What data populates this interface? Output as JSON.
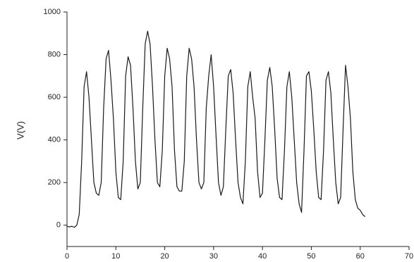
{
  "chart_data": {
    "type": "line",
    "y_label": "V(V)",
    "color": "#1a1a1a",
    "xlim": [
      0,
      70
    ],
    "xticks": [
      0,
      10,
      20,
      30,
      40,
      50,
      60,
      70
    ],
    "ylim": [
      -100,
      1000
    ],
    "yticks": [
      0,
      200,
      400,
      600,
      800,
      1000
    ],
    "x": [
      0,
      0.5,
      1,
      1.5,
      2,
      2.5,
      3,
      3.5,
      4,
      4.5,
      5,
      5.5,
      6,
      6.5,
      7,
      7.5,
      8,
      8.5,
      9,
      9.5,
      10,
      10.5,
      11,
      11.5,
      12,
      12.5,
      13,
      13.5,
      14,
      14.5,
      15,
      15.5,
      16,
      16.5,
      17,
      17.5,
      18,
      18.5,
      19,
      19.5,
      20,
      20.5,
      21,
      21.5,
      22,
      22.5,
      23,
      23.5,
      24,
      24.5,
      25,
      25.5,
      26,
      26.5,
      27,
      27.5,
      28,
      28.5,
      29,
      29.5,
      30,
      30.5,
      31,
      31.5,
      32,
      32.5,
      33,
      33.5,
      34,
      34.5,
      35,
      35.5,
      36,
      36.5,
      37,
      37.5,
      38,
      38.5,
      39,
      39.5,
      40,
      40.5,
      41,
      41.5,
      42,
      42.5,
      43,
      43.5,
      44,
      44.5,
      45,
      45.5,
      46,
      46.5,
      47,
      47.5,
      48,
      48.5,
      49,
      49.5,
      50,
      50.5,
      51,
      51.5,
      52,
      52.5,
      53,
      53.5,
      54,
      54.5,
      55,
      55.5,
      56,
      56.5,
      57,
      57.5,
      58,
      58.5,
      59,
      59.5,
      60,
      60.5,
      61
    ],
    "values": [
      -5,
      -8,
      -5,
      -10,
      0,
      50,
      300,
      650,
      720,
      600,
      400,
      200,
      150,
      140,
      200,
      550,
      780,
      820,
      680,
      500,
      250,
      130,
      120,
      300,
      700,
      790,
      750,
      550,
      300,
      170,
      200,
      550,
      850,
      910,
      850,
      650,
      400,
      200,
      180,
      350,
      700,
      830,
      780,
      650,
      350,
      180,
      160,
      160,
      300,
      700,
      830,
      780,
      650,
      400,
      200,
      170,
      200,
      550,
      700,
      800,
      650,
      420,
      200,
      140,
      180,
      450,
      700,
      730,
      620,
      400,
      200,
      130,
      100,
      300,
      650,
      720,
      600,
      500,
      250,
      130,
      150,
      400,
      680,
      740,
      650,
      450,
      220,
      130,
      120,
      350,
      650,
      720,
      600,
      400,
      200,
      100,
      60,
      350,
      700,
      720,
      630,
      450,
      250,
      130,
      120,
      350,
      680,
      720,
      620,
      400,
      200,
      100,
      130,
      450,
      750,
      650,
      500,
      250,
      120,
      80,
      70,
      50,
      40
    ]
  }
}
